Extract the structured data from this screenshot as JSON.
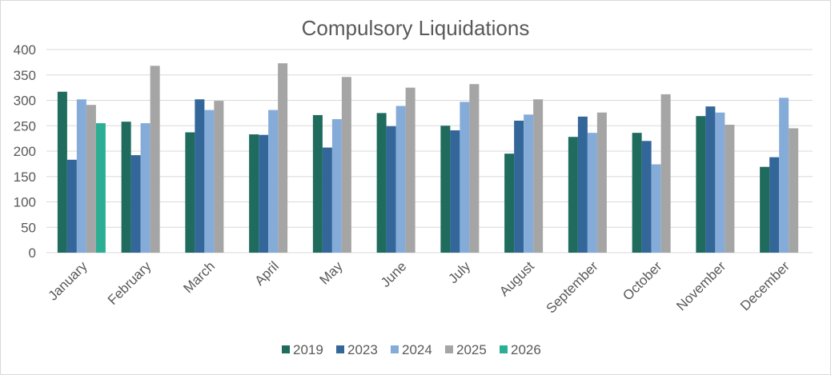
{
  "chart_data": {
    "type": "bar",
    "title": "Compulsory Liquidations",
    "xlabel": "",
    "ylabel": "",
    "ylim": [
      0,
      400
    ],
    "yticks": [
      0,
      50,
      100,
      150,
      200,
      250,
      300,
      350,
      400
    ],
    "grid": true,
    "legend": "bottom",
    "categories": [
      "January",
      "February",
      "March",
      "April",
      "May",
      "June",
      "July",
      "August",
      "September",
      "October",
      "November",
      "December"
    ],
    "series": [
      {
        "name": "2019",
        "color": "#1f6b5e",
        "values": [
          317,
          258,
          237,
          233,
          271,
          275,
          250,
          195,
          228,
          236,
          269,
          169
        ]
      },
      {
        "name": "2023",
        "color": "#336699",
        "values": [
          183,
          192,
          302,
          232,
          207,
          249,
          241,
          260,
          268,
          220,
          288,
          188
        ]
      },
      {
        "name": "2024",
        "color": "#85acd9",
        "values": [
          302,
          255,
          281,
          281,
          263,
          289,
          297,
          272,
          236,
          174,
          276,
          305
        ]
      },
      {
        "name": "2025",
        "color": "#a5a5a5",
        "values": [
          291,
          368,
          299,
          373,
          346,
          325,
          332,
          302,
          276,
          312,
          252,
          245
        ]
      },
      {
        "name": "2026",
        "color": "#2bae94",
        "values": [
          255,
          null,
          null,
          null,
          null,
          null,
          null,
          null,
          null,
          null,
          null,
          null
        ]
      }
    ]
  }
}
